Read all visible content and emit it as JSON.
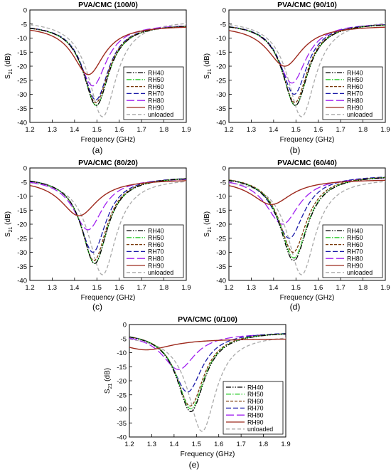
{
  "figure": {
    "panels": [
      {
        "id": "a",
        "title": "PVA/CMC (100/0)",
        "caption": "(a)"
      },
      {
        "id": "b",
        "title": "PVA/CMC (90/10)",
        "caption": "(b)"
      },
      {
        "id": "c",
        "title": "PVA/CMC (80/20)",
        "caption": "(c)"
      },
      {
        "id": "d",
        "title": "PVA/CMC (60/40)",
        "caption": "(d)"
      },
      {
        "id": "e",
        "title": "PVA/CMC (0/100)",
        "caption": "(e)"
      }
    ],
    "xlabel": "Frequency (GHz)",
    "ylabel_main": "S",
    "ylabel_sub": "21",
    "ylabel_unit": " (dB)",
    "series_styles": [
      {
        "name": "RH40",
        "color": "#000000",
        "dash": "7,2,1.5,2,1.5,2"
      },
      {
        "name": "RH50",
        "color": "#33cc33",
        "dash": "7,2,1.5,2"
      },
      {
        "name": "RH60",
        "color": "#7a3a0a",
        "dash": "4,2"
      },
      {
        "name": "RH70",
        "color": "#1a1aa8",
        "dash": "7,3"
      },
      {
        "name": "RH80",
        "color": "#a020f0",
        "dash": "11,4"
      },
      {
        "name": "RH90",
        "color": "#9e2a1e",
        "dash": ""
      },
      {
        "name": "unloaded",
        "color": "#aaaaaa",
        "dash": "5,3"
      }
    ]
  },
  "chart_data": [
    {
      "type": "line",
      "title": "PVA/CMC (100/0)",
      "xlabel": "Frequency (GHz)",
      "ylabel": "S21 (dB)",
      "xlim": [
        1.2,
        1.9
      ],
      "ylim": [
        -40,
        0
      ],
      "xticks": [
        "1.2",
        "1.3",
        "1.4",
        "1.5",
        "1.6",
        "1.7",
        "1.8",
        "1.9"
      ],
      "yticks": [
        "0",
        "-5",
        "-10",
        "-15",
        "-20",
        "-25",
        "-30",
        "-35",
        "-40"
      ],
      "legend": "bottom-right",
      "series": [
        {
          "name": "RH40",
          "f0": 1.497,
          "min": -34,
          "bw": 0.07,
          "level": -5.0
        },
        {
          "name": "RH50",
          "f0": 1.497,
          "min": -34,
          "bw": 0.07,
          "level": -5.0
        },
        {
          "name": "RH60",
          "f0": 1.495,
          "min": -33,
          "bw": 0.07,
          "level": -5.0
        },
        {
          "name": "RH70",
          "f0": 1.495,
          "min": -32,
          "bw": 0.07,
          "level": -5.0
        },
        {
          "name": "RH80",
          "f0": 1.482,
          "min": -27,
          "bw": 0.075,
          "level": -5.0
        },
        {
          "name": "RH90",
          "f0": 1.462,
          "min": -23,
          "bw": 0.085,
          "level": -5.5
        },
        {
          "name": "unloaded",
          "f0": 1.525,
          "min": -38,
          "bw": 0.075,
          "level": -3.5
        }
      ]
    },
    {
      "type": "line",
      "title": "PVA/CMC (90/10)",
      "xlabel": "Frequency (GHz)",
      "ylabel": "S21 (dB)",
      "xlim": [
        1.2,
        1.9
      ],
      "ylim": [
        -40,
        0
      ],
      "xticks": [
        "1.2",
        "1.3",
        "1.4",
        "1.5",
        "1.6",
        "1.7",
        "1.8",
        "1.9"
      ],
      "yticks": [
        "0",
        "-5",
        "-10",
        "-15",
        "-20",
        "-25",
        "-30",
        "-35",
        "-40"
      ],
      "legend": "bottom-right",
      "series": [
        {
          "name": "RH40",
          "f0": 1.497,
          "min": -34,
          "bw": 0.07,
          "level": -4.5
        },
        {
          "name": "RH50",
          "f0": 1.497,
          "min": -34,
          "bw": 0.07,
          "level": -4.5
        },
        {
          "name": "RH60",
          "f0": 1.495,
          "min": -33,
          "bw": 0.07,
          "level": -4.5
        },
        {
          "name": "RH70",
          "f0": 1.492,
          "min": -30,
          "bw": 0.072,
          "level": -4.5
        },
        {
          "name": "RH80",
          "f0": 1.482,
          "min": -26,
          "bw": 0.078,
          "level": -4.5
        },
        {
          "name": "RH90",
          "f0": 1.45,
          "min": -20,
          "bw": 0.095,
          "level": -5.5
        },
        {
          "name": "unloaded",
          "f0": 1.525,
          "min": -38,
          "bw": 0.075,
          "level": -3.5
        }
      ]
    },
    {
      "type": "line",
      "title": "PVA/CMC (80/20)",
      "xlabel": "Frequency (GHz)",
      "ylabel": "S21 (dB)",
      "xlim": [
        1.2,
        1.9
      ],
      "ylim": [
        -40,
        0
      ],
      "xticks": [
        "1.2",
        "1.3",
        "1.4",
        "1.5",
        "1.6",
        "1.7",
        "1.8",
        "1.9"
      ],
      "yticks": [
        "0",
        "-5",
        "-10",
        "-15",
        "-20",
        "-25",
        "-30",
        "-35",
        "-40"
      ],
      "legend": "bottom-right",
      "series": [
        {
          "name": "RH40",
          "f0": 1.49,
          "min": -34,
          "bw": 0.07,
          "level": -3.0
        },
        {
          "name": "RH50",
          "f0": 1.49,
          "min": -34,
          "bw": 0.07,
          "level": -3.0
        },
        {
          "name": "RH60",
          "f0": 1.487,
          "min": -33,
          "bw": 0.07,
          "level": -3.0
        },
        {
          "name": "RH70",
          "f0": 1.482,
          "min": -30,
          "bw": 0.072,
          "level": -3.0
        },
        {
          "name": "RH80",
          "f0": 1.46,
          "min": -22,
          "bw": 0.08,
          "level": -3.5
        },
        {
          "name": "RH90",
          "f0": 1.42,
          "min": -17,
          "bw": 0.1,
          "level": -4.0
        },
        {
          "name": "unloaded",
          "f0": 1.525,
          "min": -38,
          "bw": 0.075,
          "level": -3.5
        }
      ]
    },
    {
      "type": "line",
      "title": "PVA/CMC (60/40)",
      "xlabel": "Frequency (GHz)",
      "ylabel": "S21 (dB)",
      "xlim": [
        1.2,
        1.9
      ],
      "ylim": [
        -40,
        0
      ],
      "xticks": [
        "1.2",
        "1.3",
        "1.4",
        "1.5",
        "1.6",
        "1.7",
        "1.8",
        "1.9"
      ],
      "yticks": [
        "0",
        "-5",
        "-10",
        "-15",
        "-20",
        "-25",
        "-30",
        "-35",
        "-40"
      ],
      "legend": "bottom-right",
      "series": [
        {
          "name": "RH40",
          "f0": 1.49,
          "min": -33,
          "bw": 0.075,
          "level": -2.5
        },
        {
          "name": "RH50",
          "f0": 1.49,
          "min": -32,
          "bw": 0.075,
          "level": -2.5
        },
        {
          "name": "RH60",
          "f0": 1.487,
          "min": -30,
          "bw": 0.075,
          "level": -2.5
        },
        {
          "name": "RH70",
          "f0": 1.47,
          "min": -25,
          "bw": 0.08,
          "level": -2.5
        },
        {
          "name": "RH80",
          "f0": 1.44,
          "min": -20,
          "bw": 0.09,
          "level": -3.0
        },
        {
          "name": "RH90",
          "f0": 1.39,
          "min": -13,
          "bw": 0.11,
          "level": -4.0
        },
        {
          "name": "unloaded",
          "f0": 1.525,
          "min": -38,
          "bw": 0.075,
          "level": -3.5
        }
      ]
    },
    {
      "type": "line",
      "title": "PVA/CMC (0/100)",
      "xlabel": "Frequency (GHz)",
      "ylabel": "S21 (dB)",
      "xlim": [
        1.2,
        1.9
      ],
      "ylim": [
        -40,
        0
      ],
      "xticks": [
        "1.2",
        "1.3",
        "1.4",
        "1.5",
        "1.6",
        "1.7",
        "1.8",
        "1.9"
      ],
      "yticks": [
        "0",
        "-5",
        "-10",
        "-15",
        "-20",
        "-25",
        "-30",
        "-35",
        "-40"
      ],
      "legend": "bottom-right",
      "series": [
        {
          "name": "RH40",
          "f0": 1.475,
          "min": -31,
          "bw": 0.075,
          "level": -2.5
        },
        {
          "name": "RH50",
          "f0": 1.475,
          "min": -30,
          "bw": 0.075,
          "level": -2.5
        },
        {
          "name": "RH60",
          "f0": 1.472,
          "min": -29,
          "bw": 0.075,
          "level": -2.5
        },
        {
          "name": "RH70",
          "f0": 1.46,
          "min": -24,
          "bw": 0.08,
          "level": -2.5
        },
        {
          "name": "RH80",
          "f0": 1.42,
          "min": -16,
          "bw": 0.09,
          "level": -3.0
        },
        {
          "name": "RH90",
          "f0": 1.275,
          "min": -9,
          "bw": 0.14,
          "level": -5.0
        },
        {
          "name": "unloaded",
          "f0": 1.525,
          "min": -38,
          "bw": 0.075,
          "level": -3.5
        }
      ]
    }
  ]
}
